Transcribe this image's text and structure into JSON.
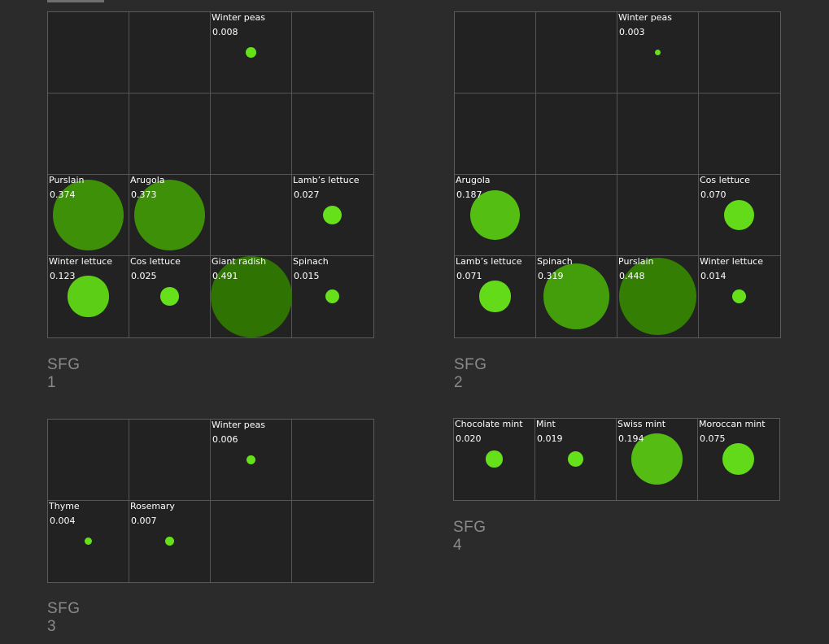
{
  "chart_data": [
    {
      "type": "scatter",
      "title": "SFG 1",
      "rows": 4,
      "cols": 4,
      "points": [
        {
          "row": 0,
          "col": 2,
          "name": "Winter peas",
          "label": "0.008",
          "value": 0.008
        },
        {
          "row": 2,
          "col": 0,
          "name": "Purslain",
          "label": "0.374",
          "value": 0.374
        },
        {
          "row": 2,
          "col": 1,
          "name": "Arugola",
          "label": "0.373",
          "value": 0.373
        },
        {
          "row": 2,
          "col": 3,
          "name": "Lamb’s lettuce",
          "label": "0.027",
          "value": 0.027
        },
        {
          "row": 3,
          "col": 0,
          "name": "Winter lettuce",
          "label": "0.123",
          "value": 0.123
        },
        {
          "row": 3,
          "col": 1,
          "name": "Cos lettuce",
          "label": "0.025",
          "value": 0.025
        },
        {
          "row": 3,
          "col": 2,
          "name": "Giant radish",
          "label": "0.491",
          "value": 0.491
        },
        {
          "row": 3,
          "col": 3,
          "name": "Spinach",
          "label": "0.015",
          "value": 0.015
        }
      ]
    },
    {
      "type": "scatter",
      "title": "SFG 2",
      "rows": 4,
      "cols": 4,
      "points": [
        {
          "row": 0,
          "col": 2,
          "name": "Winter peas",
          "label": "0.003",
          "value": 0.003
        },
        {
          "row": 2,
          "col": 0,
          "name": "Arugola",
          "label": "0.187",
          "value": 0.187
        },
        {
          "row": 2,
          "col": 3,
          "name": "Cos lettuce",
          "label": "0.070",
          "value": 0.07
        },
        {
          "row": 3,
          "col": 0,
          "name": "Lamb’s lettuce",
          "label": "0.071",
          "value": 0.071
        },
        {
          "row": 3,
          "col": 1,
          "name": "Spinach",
          "label": "0.319",
          "value": 0.319
        },
        {
          "row": 3,
          "col": 2,
          "name": "Purslain",
          "label": "0.448",
          "value": 0.448
        },
        {
          "row": 3,
          "col": 3,
          "name": "Winter lettuce",
          "label": "0.014",
          "value": 0.014
        }
      ]
    },
    {
      "type": "scatter",
      "title": "SFG 3",
      "rows": 2,
      "cols": 4,
      "points": [
        {
          "row": 0,
          "col": 2,
          "name": "Winter peas",
          "label": "0.006",
          "value": 0.006
        },
        {
          "row": 1,
          "col": 0,
          "name": "Thyme",
          "label": "0.004",
          "value": 0.004
        },
        {
          "row": 1,
          "col": 1,
          "name": "Rosemary",
          "label": "0.007",
          "value": 0.007
        }
      ]
    },
    {
      "type": "scatter",
      "title": "SFG 4",
      "rows": 1,
      "cols": 4,
      "points": [
        {
          "row": 0,
          "col": 0,
          "name": "Chocolate mint",
          "label": "0.020",
          "value": 0.02
        },
        {
          "row": 0,
          "col": 1,
          "name": "Mint",
          "label": "0.019",
          "value": 0.019
        },
        {
          "row": 0,
          "col": 2,
          "name": "Swiss mint",
          "label": "0.194",
          "value": 0.194
        },
        {
          "row": 0,
          "col": 3,
          "name": "Moroccan mint",
          "label": "0.075",
          "value": 0.075
        }
      ]
    }
  ],
  "colors": {
    "bright": "#66e01a",
    "dark": "#2f7302"
  }
}
